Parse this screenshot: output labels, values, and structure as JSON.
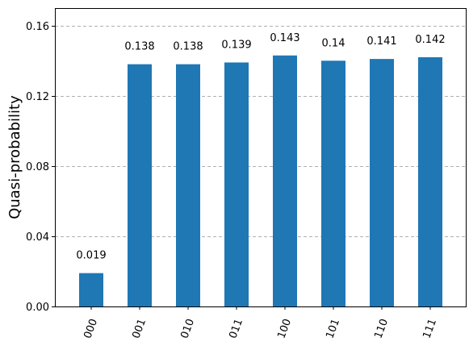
{
  "chart_data": {
    "type": "bar",
    "title": "",
    "xlabel": "",
    "ylabel": "Quasi-probability",
    "categories": [
      "000",
      "001",
      "010",
      "011",
      "100",
      "101",
      "110",
      "111"
    ],
    "values": [
      0.019,
      0.138,
      0.138,
      0.139,
      0.143,
      0.14,
      0.141,
      0.142
    ],
    "value_labels": [
      "0.019",
      "0.138",
      "0.138",
      "0.139",
      "0.143",
      "0.14",
      "0.141",
      "0.142"
    ],
    "ylim": [
      0,
      0.17
    ],
    "yticks": [
      0,
      0.04,
      0.08,
      0.12,
      0.16
    ],
    "ytick_labels": [
      "0.00",
      "0.04",
      "0.08",
      "0.12",
      "0.16"
    ],
    "grid": "horizontal dashed",
    "bar_color": "#1f77b4",
    "grid_color": "#b0b0b0",
    "axis_color": "#000000"
  }
}
